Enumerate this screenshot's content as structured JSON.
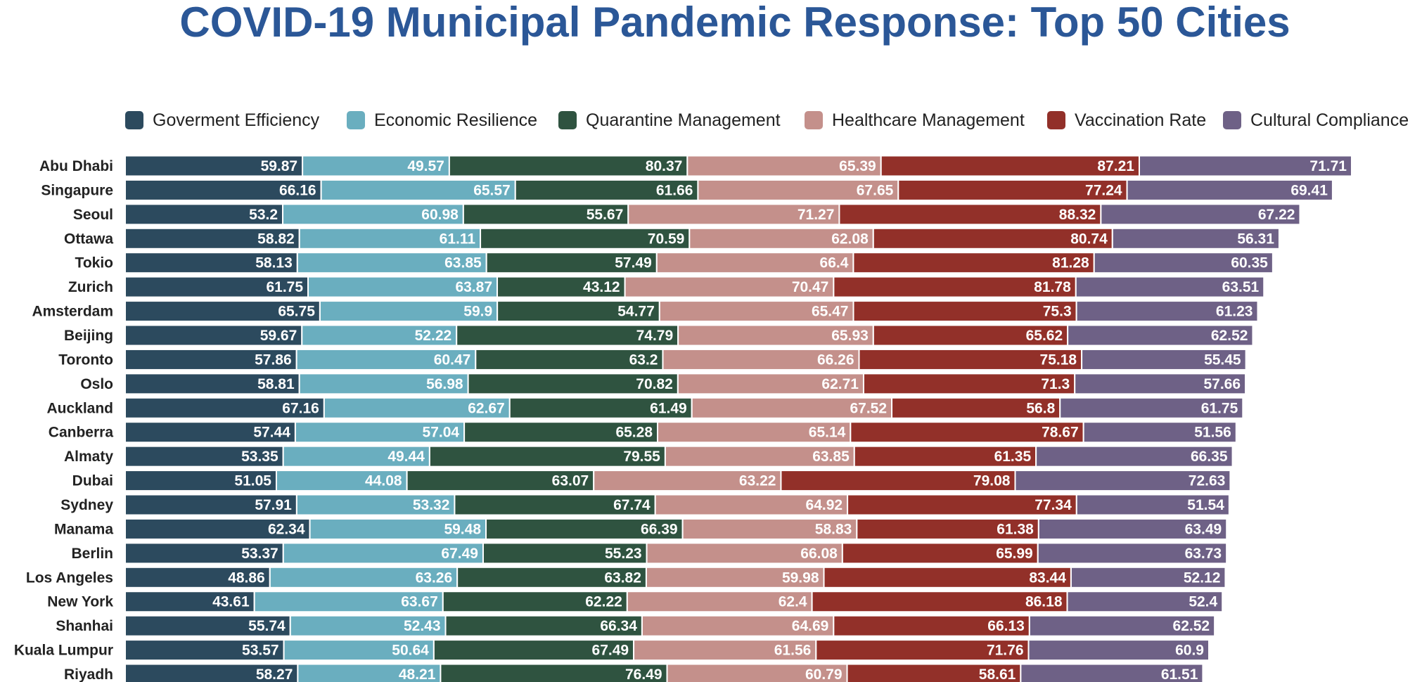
{
  "chart_data": {
    "type": "bar",
    "orientation": "horizontal",
    "stacked": true,
    "title": "COVID-19 Municipal Pandemic Response: Top 50 Cities",
    "legend_position": "top",
    "grid": false,
    "categories": [
      "Abu Dhabi",
      "Singapure",
      "Seoul",
      "Ottawa",
      "Tokio",
      "Zurich",
      "Amsterdam",
      "Beijing",
      "Toronto",
      "Oslo",
      "Auckland",
      "Canberra",
      "Almaty",
      "Dubai",
      "Sydney",
      "Manama",
      "Berlin",
      "Los Angeles",
      "New York",
      "Shanhai",
      "Kuala Lumpur",
      "Riyadh"
    ],
    "series": [
      {
        "name": "Goverment Efficiency",
        "color": "#2c4a5e",
        "values": [
          59.87,
          66.16,
          53.2,
          58.82,
          58.13,
          61.75,
          65.75,
          59.67,
          57.86,
          58.81,
          67.16,
          57.44,
          53.35,
          51.05,
          57.91,
          62.34,
          53.37,
          48.86,
          43.61,
          55.74,
          53.57,
          58.27
        ]
      },
      {
        "name": "Economic Resilience",
        "color": "#6aaebf",
        "values": [
          49.57,
          65.57,
          60.98,
          61.11,
          63.85,
          63.87,
          59.9,
          52.22,
          60.47,
          56.98,
          62.67,
          57.04,
          49.44,
          44.08,
          53.32,
          59.48,
          67.49,
          63.26,
          63.67,
          52.43,
          50.64,
          48.21
        ]
      },
      {
        "name": "Quarantine Management",
        "color": "#2f5340",
        "values": [
          80.37,
          61.66,
          55.67,
          70.59,
          57.49,
          43.12,
          54.77,
          74.79,
          63.2,
          70.82,
          61.49,
          65.28,
          79.55,
          63.07,
          67.74,
          66.39,
          55.23,
          63.82,
          62.22,
          66.34,
          67.49,
          76.49
        ]
      },
      {
        "name": "Healthcare Management",
        "color": "#c4908b",
        "values": [
          65.39,
          67.65,
          71.27,
          62.08,
          66.4,
          70.47,
          65.47,
          65.93,
          66.26,
          62.71,
          67.52,
          65.14,
          63.85,
          63.22,
          64.92,
          58.83,
          66.08,
          59.98,
          62.4,
          64.69,
          61.56,
          60.79
        ]
      },
      {
        "name": "Vaccination Rate",
        "color": "#923029",
        "values": [
          87.21,
          77.24,
          88.32,
          80.74,
          81.28,
          81.78,
          75.3,
          65.62,
          75.18,
          71.3,
          56.8,
          78.67,
          61.35,
          79.08,
          77.34,
          61.38,
          65.99,
          83.44,
          86.18,
          66.13,
          71.76,
          58.61
        ]
      },
      {
        "name": "Cultural Compliance",
        "color": "#6e6186",
        "values": [
          71.71,
          69.41,
          67.22,
          56.31,
          60.35,
          63.51,
          61.23,
          62.52,
          55.45,
          57.66,
          61.75,
          51.56,
          66.35,
          72.63,
          51.54,
          63.49,
          63.73,
          52.12,
          52.4,
          62.52,
          60.9,
          61.51
        ]
      }
    ]
  }
}
